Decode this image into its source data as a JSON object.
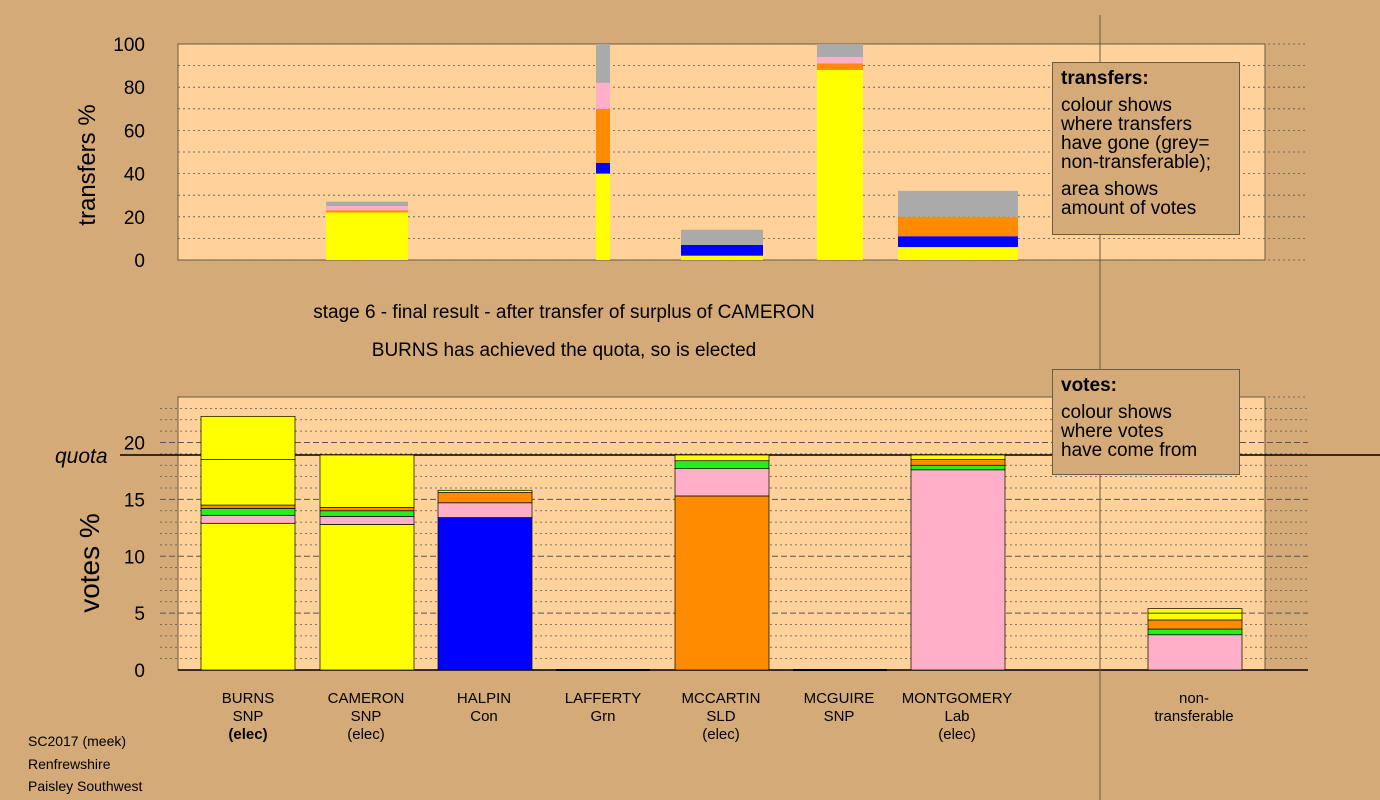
{
  "colors": {
    "background": "#d4aa78",
    "plot_bg": "#ffd29b",
    "yellow": "#ffff00",
    "blue": "#0000ff",
    "orange": "#ff8c00",
    "pink": "#ffb0c8",
    "green": "#22ee22",
    "grey": "#aaaaaa"
  },
  "stage": {
    "line1": "stage 6 - final result - after transfer of surplus of CAMERON",
    "line2": "BURNS has achieved the quota, so is elected"
  },
  "legend_transfers": {
    "title": "transfers:",
    "lines": [
      "colour shows",
      "where transfers",
      "have gone (grey=",
      "non-transferable);",
      "area shows",
      "amount of votes"
    ]
  },
  "legend_votes": {
    "title": "votes:",
    "lines": [
      "colour shows",
      "where votes",
      "have come from"
    ]
  },
  "candidates": [
    {
      "name": "BURNS",
      "party": "SNP",
      "status": "(elec)",
      "status_bold": true
    },
    {
      "name": "CAMERON",
      "party": "SNP",
      "status": "(elec)",
      "status_bold": false
    },
    {
      "name": "HALPIN",
      "party": "Con",
      "status": "",
      "status_bold": false
    },
    {
      "name": "LAFFERTY",
      "party": "Grn",
      "status": "",
      "status_bold": false
    },
    {
      "name": "MCCARTIN",
      "party": "SLD",
      "status": "(elec)",
      "status_bold": false
    },
    {
      "name": "MCGUIRE",
      "party": "SNP",
      "status": "",
      "status_bold": false
    },
    {
      "name": "MONTGOMERY",
      "party": "Lab",
      "status": "(elec)",
      "status_bold": false
    },
    {
      "name": "non-",
      "party": "transferable",
      "status": "",
      "status_bold": false
    }
  ],
  "footer": {
    "line1": "SC2017 (meek)",
    "line2": "Renfrewshire",
    "line3": "Paisley Southwest"
  },
  "chart_data": [
    {
      "type": "bar",
      "name": "transfers",
      "ylabel": "transfers %",
      "ylim": [
        0,
        100
      ],
      "yticks": [
        0,
        20,
        40,
        60,
        80,
        100
      ],
      "bars": [
        {
          "category": "BURNS",
          "total": 0,
          "segments": []
        },
        {
          "category": "CAMERON",
          "total": 27,
          "segments": [
            {
              "color": "yellow",
              "value": 22
            },
            {
              "color": "orange",
              "value": 1
            },
            {
              "color": "pink",
              "value": 2
            },
            {
              "color": "grey",
              "value": 2
            }
          ]
        },
        {
          "category": "HALPIN",
          "total": 100,
          "segments": [
            {
              "color": "yellow",
              "value": 40
            },
            {
              "color": "blue",
              "value": 5
            },
            {
              "color": "orange",
              "value": 25
            },
            {
              "color": "pink",
              "value": 12
            },
            {
              "color": "grey",
              "value": 18
            }
          ]
        },
        {
          "category": "LAFFERTY",
          "total": 14,
          "segments": [
            {
              "color": "yellow",
              "value": 2
            },
            {
              "color": "blue",
              "value": 5
            },
            {
              "color": "grey",
              "value": 7
            }
          ]
        },
        {
          "category": "MCCARTIN",
          "total": 100,
          "segments": [
            {
              "color": "yellow",
              "value": 88
            },
            {
              "color": "orange",
              "value": 3
            },
            {
              "color": "pink",
              "value": 3
            },
            {
              "color": "grey",
              "value": 6
            }
          ]
        },
        {
          "category": "MCGUIRE",
          "total": 32,
          "segments": [
            {
              "color": "yellow",
              "value": 6
            },
            {
              "color": "blue",
              "value": 5
            },
            {
              "color": "orange",
              "value": 9
            },
            {
              "color": "grey",
              "value": 12
            }
          ]
        },
        {
          "category": "MONTGOMERY",
          "total": 0,
          "segments": []
        }
      ]
    },
    {
      "type": "bar",
      "name": "votes",
      "ylabel": "votes %",
      "ylim": [
        0,
        24
      ],
      "yticks": [
        0,
        5,
        10,
        15,
        20
      ],
      "quota": 18.9,
      "quota_label": "quota",
      "bars": [
        {
          "category": "BURNS",
          "segments": [
            {
              "color": "yellow",
              "value": 12.9
            },
            {
              "color": "pink",
              "value": 0.7
            },
            {
              "color": "green",
              "value": 0.6
            },
            {
              "color": "orange",
              "value": 0.3
            },
            {
              "color": "yellow",
              "value": 4.0
            },
            {
              "color": "yellow",
              "value": 3.8
            }
          ]
        },
        {
          "category": "CAMERON",
          "segments": [
            {
              "color": "yellow",
              "value": 12.8
            },
            {
              "color": "pink",
              "value": 0.7
            },
            {
              "color": "green",
              "value": 0.5
            },
            {
              "color": "orange",
              "value": 0.3
            },
            {
              "color": "yellow",
              "value": 4.6
            }
          ]
        },
        {
          "category": "HALPIN",
          "segments": [
            {
              "color": "blue",
              "value": 13.4
            },
            {
              "color": "pink",
              "value": 1.3
            },
            {
              "color": "orange",
              "value": 0.9
            },
            {
              "color": "yellow",
              "value": 0.2
            }
          ]
        },
        {
          "category": "LAFFERTY",
          "segments": []
        },
        {
          "category": "MCCARTIN",
          "segments": [
            {
              "color": "orange",
              "value": 15.3
            },
            {
              "color": "pink",
              "value": 2.4
            },
            {
              "color": "green",
              "value": 0.7
            },
            {
              "color": "yellow",
              "value": 0.5
            }
          ]
        },
        {
          "category": "MCGUIRE",
          "segments": []
        },
        {
          "category": "MONTGOMERY",
          "segments": [
            {
              "color": "pink",
              "value": 17.6
            },
            {
              "color": "green",
              "value": 0.4
            },
            {
              "color": "orange",
              "value": 0.5
            },
            {
              "color": "yellow",
              "value": 0.4
            }
          ]
        },
        {
          "category": "non-transferable",
          "segments": [
            {
              "color": "pink",
              "value": 3.1
            },
            {
              "color": "green",
              "value": 0.5
            },
            {
              "color": "orange",
              "value": 0.8
            },
            {
              "color": "yellow",
              "value": 0.6
            },
            {
              "color": "yellow",
              "value": 0.4
            }
          ]
        }
      ]
    }
  ]
}
